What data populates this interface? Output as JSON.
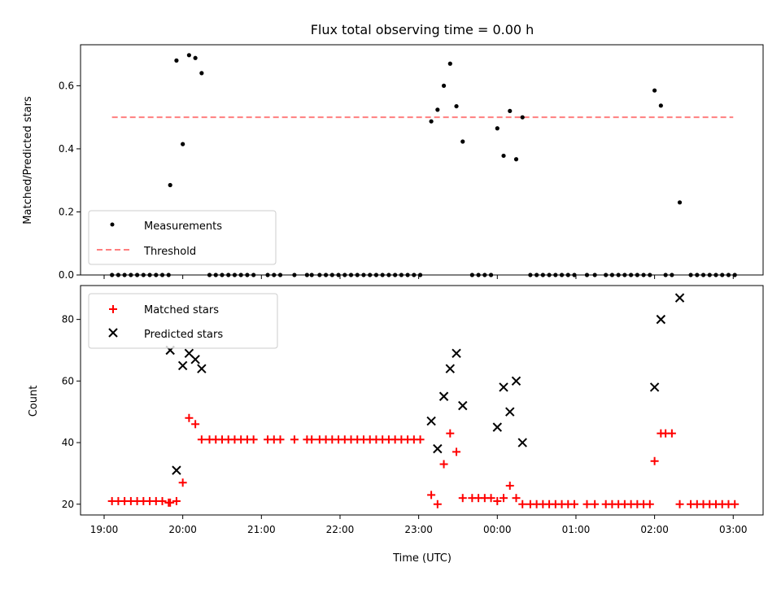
{
  "chart_data": [
    {
      "type": "scatter",
      "title": "Flux total observing time = 0.00 h",
      "ylabel": "Matched/Predicted stars",
      "xlabel": "",
      "ylim": [
        0,
        0.73
      ],
      "yticks": [
        0.0,
        0.2,
        0.4,
        0.6
      ],
      "ytick_labels": [
        "0.0",
        "0.2",
        "0.4",
        "0.6"
      ],
      "xlim_hours": [
        18.7,
        27.38
      ],
      "legend_position": "lower-left",
      "threshold": {
        "name": "Threshold",
        "value": 0.5,
        "x_range_hours": [
          19.1,
          27.0
        ],
        "color": "#ff7f7f"
      },
      "series": [
        {
          "name": "Measurements",
          "color": "#000000",
          "points": [
            [
              19.1,
              0
            ],
            [
              19.18,
              0
            ],
            [
              19.26,
              0
            ],
            [
              19.34,
              0
            ],
            [
              19.42,
              0
            ],
            [
              19.5,
              0
            ],
            [
              19.58,
              0
            ],
            [
              19.66,
              0
            ],
            [
              19.74,
              0
            ],
            [
              19.82,
              0
            ],
            [
              19.84,
              0.285
            ],
            [
              19.92,
              0.68
            ],
            [
              20.0,
              0.415
            ],
            [
              20.08,
              0.697
            ],
            [
              20.16,
              0.688
            ],
            [
              20.24,
              0.64
            ],
            [
              20.34,
              0
            ],
            [
              20.42,
              0
            ],
            [
              20.5,
              0
            ],
            [
              20.58,
              0
            ],
            [
              20.66,
              0
            ],
            [
              20.74,
              0
            ],
            [
              20.82,
              0
            ],
            [
              20.9,
              0
            ],
            [
              21.08,
              0
            ],
            [
              21.16,
              0
            ],
            [
              21.24,
              0
            ],
            [
              21.42,
              0
            ],
            [
              21.58,
              0
            ],
            [
              21.64,
              0
            ],
            [
              21.74,
              0
            ],
            [
              21.82,
              0
            ],
            [
              21.9,
              0
            ],
            [
              21.98,
              0
            ],
            [
              22.06,
              0
            ],
            [
              22.14,
              0
            ],
            [
              22.22,
              0
            ],
            [
              22.3,
              0
            ],
            [
              22.38,
              0
            ],
            [
              22.46,
              0
            ],
            [
              22.54,
              0
            ],
            [
              22.62,
              0
            ],
            [
              22.7,
              0
            ],
            [
              22.78,
              0
            ],
            [
              22.86,
              0
            ],
            [
              22.94,
              0
            ],
            [
              23.02,
              0
            ],
            [
              23.16,
              0.487
            ],
            [
              23.24,
              0.524
            ],
            [
              23.32,
              0.6
            ],
            [
              23.4,
              0.67
            ],
            [
              23.48,
              0.535
            ],
            [
              23.56,
              0.423
            ],
            [
              23.68,
              0
            ],
            [
              23.76,
              0
            ],
            [
              23.84,
              0
            ],
            [
              23.92,
              0
            ],
            [
              24.0,
              0.465
            ],
            [
              24.08,
              0.378
            ],
            [
              24.16,
              0.52
            ],
            [
              24.24,
              0.367
            ],
            [
              24.32,
              0.5
            ],
            [
              24.42,
              0
            ],
            [
              24.5,
              0
            ],
            [
              24.58,
              0
            ],
            [
              24.66,
              0
            ],
            [
              24.74,
              0
            ],
            [
              24.82,
              0
            ],
            [
              24.9,
              0
            ],
            [
              24.98,
              0
            ],
            [
              25.14,
              0
            ],
            [
              25.24,
              0
            ],
            [
              25.38,
              0
            ],
            [
              25.46,
              0
            ],
            [
              25.54,
              0
            ],
            [
              25.62,
              0
            ],
            [
              25.7,
              0
            ],
            [
              25.78,
              0
            ],
            [
              25.86,
              0
            ],
            [
              25.94,
              0
            ],
            [
              26.0,
              0.585
            ],
            [
              26.08,
              0.537
            ],
            [
              26.14,
              0
            ],
            [
              26.22,
              0
            ],
            [
              26.32,
              0.23
            ],
            [
              26.46,
              0
            ],
            [
              26.54,
              0
            ],
            [
              26.62,
              0
            ],
            [
              26.7,
              0
            ],
            [
              26.78,
              0
            ],
            [
              26.86,
              0
            ],
            [
              26.94,
              0
            ],
            [
              27.02,
              0
            ]
          ]
        }
      ]
    },
    {
      "type": "scatter",
      "title": "",
      "xlabel": "Time (UTC)",
      "ylabel": "Count",
      "ylim": [
        16.5,
        91
      ],
      "yticks": [
        20,
        40,
        60,
        80
      ],
      "ytick_labels": [
        "20",
        "40",
        "60",
        "80"
      ],
      "xlim_hours": [
        18.7,
        27.38
      ],
      "xticks_hours": [
        19,
        20,
        21,
        22,
        23,
        24,
        25,
        26,
        27
      ],
      "xtick_labels": [
        "19:00",
        "20:00",
        "21:00",
        "22:00",
        "23:00",
        "00:00",
        "01:00",
        "02:00",
        "03:00"
      ],
      "legend_position": "upper-left",
      "series": [
        {
          "name": "Matched stars",
          "color": "#ff0000",
          "marker": "plus",
          "points": [
            [
              19.1,
              21
            ],
            [
              19.18,
              21
            ],
            [
              19.26,
              21
            ],
            [
              19.34,
              21
            ],
            [
              19.42,
              21
            ],
            [
              19.5,
              21
            ],
            [
              19.58,
              21
            ],
            [
              19.66,
              21
            ],
            [
              19.74,
              21
            ],
            [
              19.82,
              20.5
            ],
            [
              19.84,
              20.5
            ],
            [
              19.92,
              21
            ],
            [
              20.0,
              27
            ],
            [
              20.08,
              48
            ],
            [
              20.16,
              46
            ],
            [
              20.24,
              41
            ],
            [
              20.34,
              41
            ],
            [
              20.42,
              41
            ],
            [
              20.5,
              41
            ],
            [
              20.58,
              41
            ],
            [
              20.66,
              41
            ],
            [
              20.74,
              41
            ],
            [
              20.82,
              41
            ],
            [
              20.9,
              41
            ],
            [
              21.08,
              41
            ],
            [
              21.16,
              41
            ],
            [
              21.24,
              41
            ],
            [
              21.42,
              41
            ],
            [
              21.58,
              41
            ],
            [
              21.64,
              41
            ],
            [
              21.74,
              41
            ],
            [
              21.82,
              41
            ],
            [
              21.9,
              41
            ],
            [
              21.98,
              41
            ],
            [
              22.06,
              41
            ],
            [
              22.14,
              41
            ],
            [
              22.22,
              41
            ],
            [
              22.3,
              41
            ],
            [
              22.38,
              41
            ],
            [
              22.46,
              41
            ],
            [
              22.54,
              41
            ],
            [
              22.62,
              41
            ],
            [
              22.7,
              41
            ],
            [
              22.78,
              41
            ],
            [
              22.86,
              41
            ],
            [
              22.94,
              41
            ],
            [
              23.02,
              41
            ],
            [
              23.16,
              23
            ],
            [
              23.24,
              20
            ],
            [
              23.32,
              33
            ],
            [
              23.4,
              43
            ],
            [
              23.48,
              37
            ],
            [
              23.56,
              22
            ],
            [
              23.68,
              22
            ],
            [
              23.76,
              22
            ],
            [
              23.84,
              22
            ],
            [
              23.92,
              22
            ],
            [
              24.0,
              21
            ],
            [
              24.08,
              22
            ],
            [
              24.16,
              26
            ],
            [
              24.24,
              22
            ],
            [
              24.32,
              20
            ],
            [
              24.42,
              20
            ],
            [
              24.5,
              20
            ],
            [
              24.58,
              20
            ],
            [
              24.66,
              20
            ],
            [
              24.74,
              20
            ],
            [
              24.82,
              20
            ],
            [
              24.9,
              20
            ],
            [
              24.98,
              20
            ],
            [
              25.14,
              20
            ],
            [
              25.24,
              20
            ],
            [
              25.38,
              20
            ],
            [
              25.46,
              20
            ],
            [
              25.54,
              20
            ],
            [
              25.62,
              20
            ],
            [
              25.7,
              20
            ],
            [
              25.78,
              20
            ],
            [
              25.86,
              20
            ],
            [
              25.94,
              20
            ],
            [
              26.0,
              34
            ],
            [
              26.08,
              43
            ],
            [
              26.14,
              43
            ],
            [
              26.22,
              43
            ],
            [
              26.32,
              20
            ],
            [
              26.46,
              20
            ],
            [
              26.54,
              20
            ],
            [
              26.62,
              20
            ],
            [
              26.7,
              20
            ],
            [
              26.78,
              20
            ],
            [
              26.86,
              20
            ],
            [
              26.94,
              20
            ],
            [
              27.02,
              20
            ]
          ]
        },
        {
          "name": "Predicted stars",
          "color": "#000000",
          "marker": "x",
          "points": [
            [
              19.84,
              70
            ],
            [
              19.92,
              31
            ],
            [
              20.0,
              65
            ],
            [
              20.08,
              69
            ],
            [
              20.16,
              67
            ],
            [
              20.24,
              64
            ],
            [
              23.16,
              47
            ],
            [
              23.24,
              38
            ],
            [
              23.32,
              55
            ],
            [
              23.4,
              64
            ],
            [
              23.48,
              69
            ],
            [
              23.56,
              52
            ],
            [
              24.0,
              45
            ],
            [
              24.08,
              58
            ],
            [
              24.16,
              50
            ],
            [
              24.24,
              60
            ],
            [
              24.32,
              40
            ],
            [
              26.0,
              58
            ],
            [
              26.08,
              80
            ],
            [
              26.32,
              87
            ]
          ]
        }
      ]
    }
  ]
}
